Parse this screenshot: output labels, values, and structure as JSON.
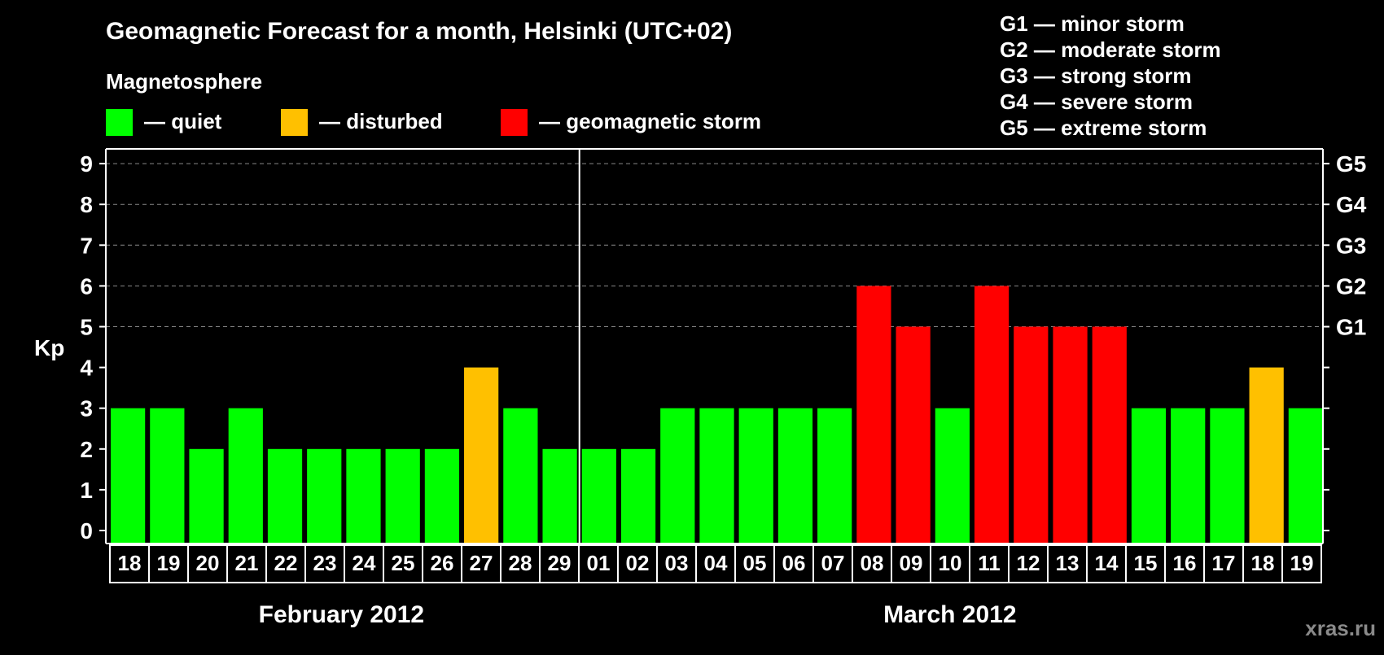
{
  "chart_data": {
    "type": "bar",
    "title": "Geomagnetic Forecast for a month, Helsinki (UTC+02)",
    "legend_title": "Magnetosphere",
    "legend": [
      {
        "key": "quiet",
        "label": "— quiet",
        "color": "#00ff00"
      },
      {
        "key": "disturbed",
        "label": "— disturbed",
        "color": "#ffc000"
      },
      {
        "key": "storm",
        "label": "— geomagnetic storm",
        "color": "#ff0000"
      }
    ],
    "storm_scale": [
      "G1 — minor storm",
      "G2 — moderate storm",
      "G3 — strong storm",
      "G4 — severe storm",
      "G5 — extreme storm"
    ],
    "ylabel": "Kp",
    "ylim": [
      0,
      9
    ],
    "yticks": [
      "0",
      "1",
      "2",
      "3",
      "4",
      "5",
      "6",
      "7",
      "8",
      "9"
    ],
    "right_ticks": [
      {
        "kp": 5,
        "label": "G1"
      },
      {
        "kp": 6,
        "label": "G2"
      },
      {
        "kp": 7,
        "label": "G3"
      },
      {
        "kp": 8,
        "label": "G4"
      },
      {
        "kp": 9,
        "label": "G5"
      }
    ],
    "grid": true,
    "months": [
      {
        "label": "February 2012",
        "start": 0,
        "count": 12
      },
      {
        "label": "March 2012",
        "start": 12,
        "count": 19
      }
    ],
    "categories": [
      "18",
      "19",
      "20",
      "21",
      "22",
      "23",
      "24",
      "25",
      "26",
      "27",
      "28",
      "29",
      "01",
      "02",
      "03",
      "04",
      "05",
      "06",
      "07",
      "08",
      "09",
      "10",
      "11",
      "12",
      "13",
      "14",
      "15",
      "16",
      "17",
      "18",
      "19"
    ],
    "values": [
      3,
      3,
      2,
      3,
      2,
      2,
      2,
      2,
      2,
      4,
      3,
      2,
      2,
      2,
      3,
      3,
      3,
      3,
      3,
      6,
      5,
      3,
      6,
      5,
      5,
      5,
      3,
      3,
      3,
      4,
      3
    ],
    "levels": [
      "quiet",
      "quiet",
      "quiet",
      "quiet",
      "quiet",
      "quiet",
      "quiet",
      "quiet",
      "quiet",
      "disturbed",
      "quiet",
      "quiet",
      "quiet",
      "quiet",
      "quiet",
      "quiet",
      "quiet",
      "quiet",
      "quiet",
      "storm",
      "storm",
      "quiet",
      "storm",
      "storm",
      "storm",
      "storm",
      "quiet",
      "quiet",
      "quiet",
      "disturbed",
      "quiet"
    ]
  },
  "watermark": "xras.ru"
}
